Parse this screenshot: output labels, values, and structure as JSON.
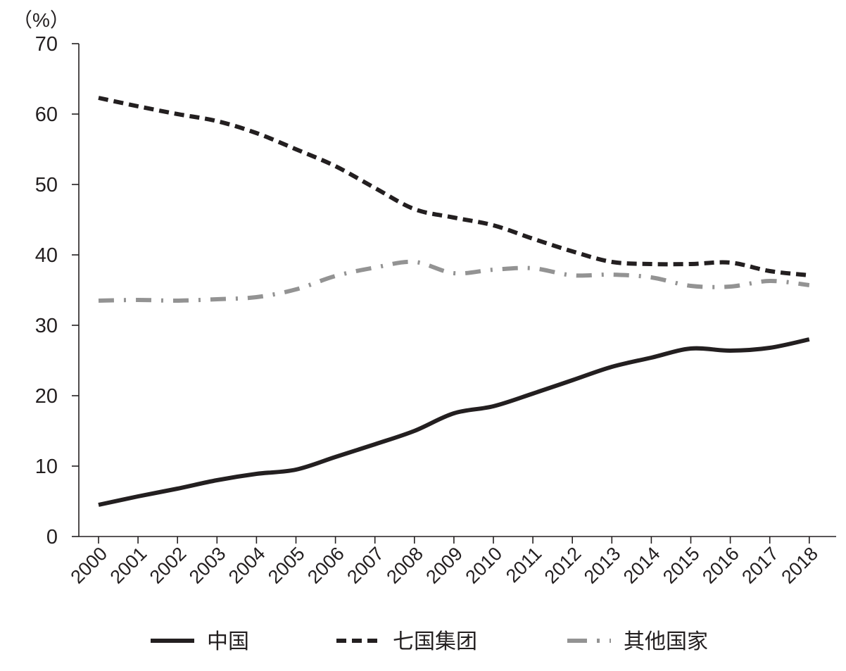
{
  "chart_data": {
    "type": "line",
    "title": "",
    "xlabel": "",
    "ylabel": "（%）",
    "ylim": [
      0,
      70
    ],
    "yticks": [
      "0",
      "10",
      "20",
      "30",
      "40",
      "50",
      "60",
      "70"
    ],
    "x": [
      "2000",
      "2001",
      "2002",
      "2003",
      "2004",
      "2005",
      "2006",
      "2007",
      "2008",
      "2009",
      "2010",
      "2011",
      "2012",
      "2013",
      "2014",
      "2015",
      "2016",
      "2017",
      "2018"
    ],
    "grid": false,
    "legend_position": "bottom",
    "series": [
      {
        "name": "中国",
        "style": "solid",
        "color": "#231f20",
        "values": [
          4.5,
          5.7,
          6.8,
          8.0,
          8.9,
          9.5,
          11.3,
          13.1,
          15.0,
          17.5,
          18.5,
          20.3,
          22.2,
          24.1,
          25.4,
          26.7,
          26.4,
          26.8,
          28.0
        ]
      },
      {
        "name": "七国集团",
        "style": "dashed",
        "color": "#231f20",
        "values": [
          62.3,
          61.1,
          60.0,
          59.0,
          57.3,
          55.0,
          52.6,
          49.5,
          46.5,
          45.3,
          44.2,
          42.3,
          40.5,
          39.0,
          38.7,
          38.7,
          38.9,
          37.7,
          37.1
        ]
      },
      {
        "name": "其他国家",
        "style": "dash-dot",
        "color": "#939393",
        "values": [
          33.5,
          33.6,
          33.5,
          33.7,
          34.0,
          35.1,
          37.0,
          38.2,
          39.0,
          37.4,
          37.9,
          38.1,
          37.1,
          37.2,
          36.8,
          35.6,
          35.5,
          36.3,
          35.7
        ]
      }
    ]
  }
}
